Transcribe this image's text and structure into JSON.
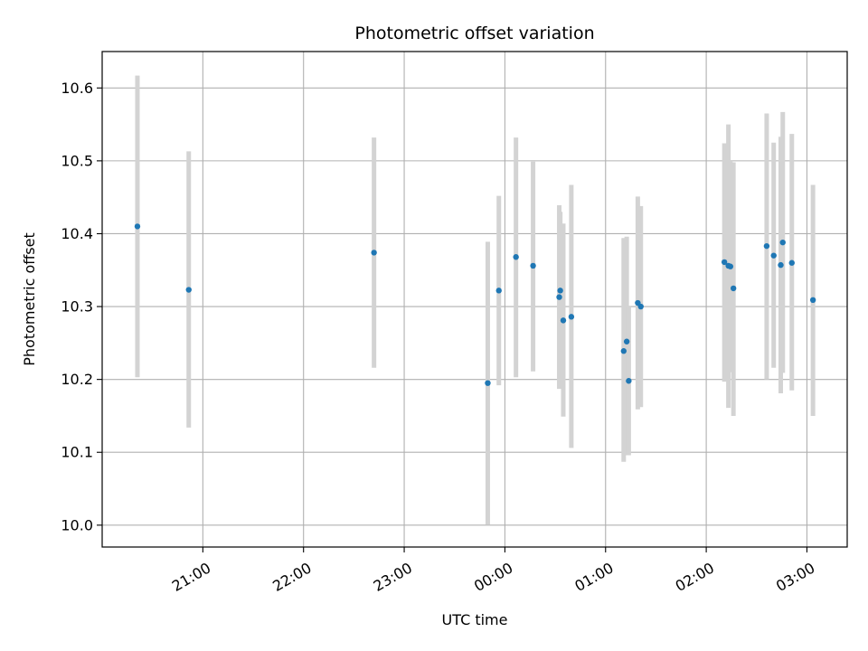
{
  "chart_data": {
    "type": "scatter",
    "title": "Photometric offset variation",
    "xlabel": "UTC time",
    "ylabel": "Photometric offset",
    "x_unit": "hours (UTC, wrapping past midnight)",
    "xlim": [
      20.0,
      27.4
    ],
    "ylim": [
      9.97,
      10.65
    ],
    "x_ticks": [
      {
        "value": 21,
        "label": "21:00"
      },
      {
        "value": 22,
        "label": "22:00"
      },
      {
        "value": 23,
        "label": "23:00"
      },
      {
        "value": 24,
        "label": "00:00"
      },
      {
        "value": 25,
        "label": "01:00"
      },
      {
        "value": 26,
        "label": "02:00"
      },
      {
        "value": 27,
        "label": "03:00"
      }
    ],
    "y_ticks": [
      {
        "value": 10.0,
        "label": "10.0"
      },
      {
        "value": 10.1,
        "label": "10.1"
      },
      {
        "value": 10.2,
        "label": "10.2"
      },
      {
        "value": 10.3,
        "label": "10.3"
      },
      {
        "value": 10.4,
        "label": "10.4"
      },
      {
        "value": 10.5,
        "label": "10.5"
      },
      {
        "value": 10.6,
        "label": "10.6"
      }
    ],
    "grid": true,
    "colors": {
      "point": "#1f77b4",
      "errorbar": "#d3d3d3",
      "grid": "#b0b0b0"
    },
    "points": [
      {
        "x": 20.35,
        "y": 10.41,
        "ylo": 10.203,
        "yhi": 10.617
      },
      {
        "x": 20.86,
        "y": 10.323,
        "ylo": 10.134,
        "yhi": 10.513
      },
      {
        "x": 22.7,
        "y": 10.374,
        "ylo": 10.216,
        "yhi": 10.532
      },
      {
        "x": 23.83,
        "y": 10.195,
        "ylo": 10.001,
        "yhi": 10.389
      },
      {
        "x": 23.94,
        "y": 10.322,
        "ylo": 10.192,
        "yhi": 10.452
      },
      {
        "x": 24.11,
        "y": 10.368,
        "ylo": 10.203,
        "yhi": 10.532
      },
      {
        "x": 24.28,
        "y": 10.356,
        "ylo": 10.211,
        "yhi": 10.499
      },
      {
        "x": 24.54,
        "y": 10.313,
        "ylo": 10.187,
        "yhi": 10.439
      },
      {
        "x": 24.55,
        "y": 10.322,
        "ylo": 10.215,
        "yhi": 10.43
      },
      {
        "x": 24.58,
        "y": 10.281,
        "ylo": 10.149,
        "yhi": 10.414
      },
      {
        "x": 24.66,
        "y": 10.286,
        "ylo": 10.106,
        "yhi": 10.467
      },
      {
        "x": 25.18,
        "y": 10.239,
        "ylo": 10.087,
        "yhi": 10.394
      },
      {
        "x": 25.21,
        "y": 10.252,
        "ylo": 10.096,
        "yhi": 10.396
      },
      {
        "x": 25.23,
        "y": 10.198,
        "ylo": 10.096,
        "yhi": 10.3
      },
      {
        "x": 25.32,
        "y": 10.305,
        "ylo": 10.159,
        "yhi": 10.451
      },
      {
        "x": 25.35,
        "y": 10.3,
        "ylo": 10.162,
        "yhi": 10.438
      },
      {
        "x": 26.18,
        "y": 10.361,
        "ylo": 10.197,
        "yhi": 10.524
      },
      {
        "x": 26.22,
        "y": 10.356,
        "ylo": 10.161,
        "yhi": 10.55
      },
      {
        "x": 26.24,
        "y": 10.355,
        "ylo": 10.21,
        "yhi": 10.5
      },
      {
        "x": 26.27,
        "y": 10.325,
        "ylo": 10.15,
        "yhi": 10.498
      },
      {
        "x": 26.6,
        "y": 10.383,
        "ylo": 10.2,
        "yhi": 10.565
      },
      {
        "x": 26.67,
        "y": 10.37,
        "ylo": 10.216,
        "yhi": 10.525
      },
      {
        "x": 26.74,
        "y": 10.357,
        "ylo": 10.181,
        "yhi": 10.533
      },
      {
        "x": 26.76,
        "y": 10.388,
        "ylo": 10.209,
        "yhi": 10.567
      },
      {
        "x": 26.85,
        "y": 10.36,
        "ylo": 10.185,
        "yhi": 10.537
      },
      {
        "x": 27.06,
        "y": 10.309,
        "ylo": 10.15,
        "yhi": 10.467
      }
    ]
  }
}
